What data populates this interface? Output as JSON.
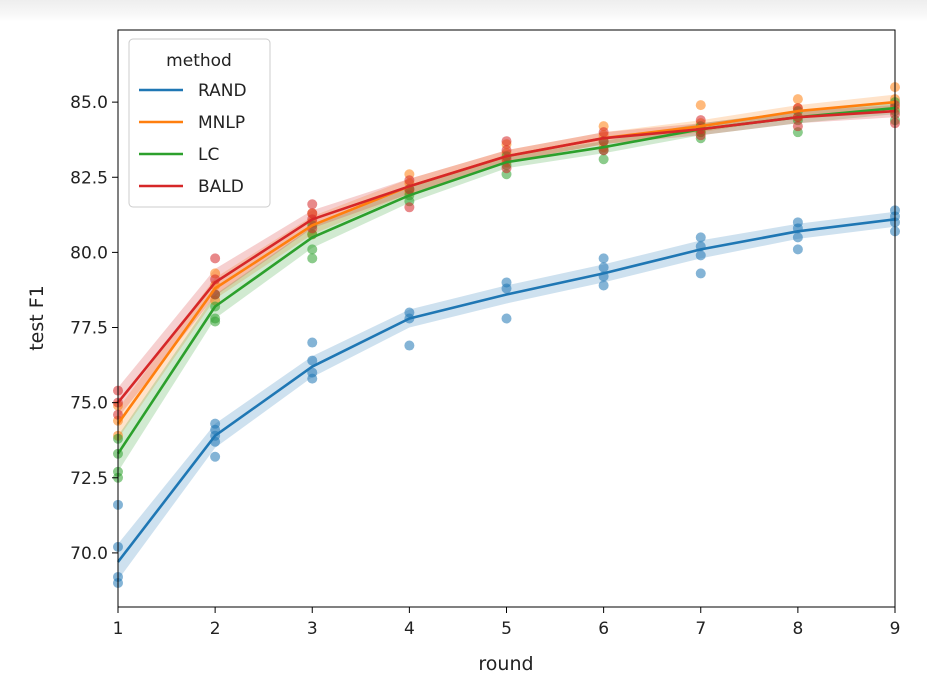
{
  "chart_data": {
    "type": "line",
    "xlabel": "round",
    "ylabel": "test F1",
    "xlim": [
      1,
      9
    ],
    "ylim": [
      68.2,
      87.4
    ],
    "x_ticks": [
      "1",
      "2",
      "3",
      "4",
      "5",
      "6",
      "7",
      "8",
      "9"
    ],
    "y_ticks": [
      "70.0",
      "72.5",
      "75.0",
      "77.5",
      "80.0",
      "82.5",
      "85.0"
    ],
    "grid": false,
    "legend": {
      "title": "method",
      "placement": "top-left"
    },
    "x": [
      1,
      2,
      3,
      4,
      5,
      6,
      7,
      8,
      9
    ],
    "series": [
      {
        "name": "RAND",
        "color": "#1f77b4",
        "values": [
          69.7,
          73.9,
          76.2,
          77.8,
          78.6,
          79.3,
          80.1,
          80.7,
          81.1
        ],
        "ci": [
          0.6,
          0.4,
          0.35,
          0.3,
          0.3,
          0.3,
          0.3,
          0.25,
          0.25
        ],
        "points": [
          [
            1,
            69.0
          ],
          [
            1,
            69.2
          ],
          [
            1,
            70.2
          ],
          [
            1,
            71.6
          ],
          [
            2,
            73.2
          ],
          [
            2,
            73.7
          ],
          [
            2,
            73.9
          ],
          [
            2,
            74.1
          ],
          [
            2,
            74.3
          ],
          [
            3,
            75.8
          ],
          [
            3,
            76.0
          ],
          [
            3,
            76.4
          ],
          [
            3,
            77.0
          ],
          [
            4,
            76.9
          ],
          [
            4,
            77.8
          ],
          [
            4,
            78.0
          ],
          [
            5,
            77.8
          ],
          [
            5,
            78.8
          ],
          [
            5,
            79.0
          ],
          [
            6,
            78.9
          ],
          [
            6,
            79.2
          ],
          [
            6,
            79.5
          ],
          [
            6,
            79.8
          ],
          [
            7,
            79.3
          ],
          [
            7,
            79.9
          ],
          [
            7,
            80.2
          ],
          [
            7,
            80.5
          ],
          [
            8,
            80.1
          ],
          [
            8,
            80.5
          ],
          [
            8,
            80.8
          ],
          [
            8,
            81.0
          ],
          [
            9,
            80.7
          ],
          [
            9,
            81.0
          ],
          [
            9,
            81.2
          ],
          [
            9,
            81.4
          ]
        ]
      },
      {
        "name": "MNLP",
        "color": "#ff7f0e",
        "values": [
          74.3,
          78.8,
          80.9,
          82.2,
          83.2,
          83.8,
          84.2,
          84.7,
          85.0
        ],
        "ci": [
          0.5,
          0.35,
          0.3,
          0.25,
          0.2,
          0.2,
          0.2,
          0.2,
          0.25
        ],
        "points": [
          [
            1,
            73.9
          ],
          [
            1,
            74.4
          ],
          [
            1,
            74.9
          ],
          [
            2,
            78.4
          ],
          [
            2,
            78.9
          ],
          [
            2,
            79.3
          ],
          [
            3,
            80.6
          ],
          [
            3,
            81.0
          ],
          [
            3,
            81.3
          ],
          [
            4,
            82.0
          ],
          [
            4,
            82.3
          ],
          [
            4,
            82.6
          ],
          [
            5,
            83.0
          ],
          [
            5,
            83.3
          ],
          [
            5,
            83.6
          ],
          [
            6,
            83.5
          ],
          [
            6,
            83.9
          ],
          [
            6,
            84.2
          ],
          [
            7,
            84.0
          ],
          [
            7,
            84.3
          ],
          [
            7,
            84.9
          ],
          [
            8,
            84.5
          ],
          [
            8,
            84.8
          ],
          [
            8,
            85.1
          ],
          [
            9,
            84.8
          ],
          [
            9,
            85.1
          ],
          [
            9,
            85.5
          ]
        ]
      },
      {
        "name": "LC",
        "color": "#2ca02c",
        "values": [
          73.3,
          78.2,
          80.5,
          81.9,
          83.0,
          83.5,
          84.1,
          84.5,
          84.8
        ],
        "ci": [
          0.6,
          0.4,
          0.35,
          0.25,
          0.2,
          0.2,
          0.2,
          0.2,
          0.2
        ],
        "points": [
          [
            1,
            72.5
          ],
          [
            1,
            72.7
          ],
          [
            1,
            73.3
          ],
          [
            1,
            73.8
          ],
          [
            2,
            77.7
          ],
          [
            2,
            77.8
          ],
          [
            2,
            78.2
          ],
          [
            2,
            78.6
          ],
          [
            3,
            79.8
          ],
          [
            3,
            80.1
          ],
          [
            3,
            80.6
          ],
          [
            3,
            80.9
          ],
          [
            4,
            81.7
          ],
          [
            4,
            81.9
          ],
          [
            4,
            82.1
          ],
          [
            5,
            82.6
          ],
          [
            5,
            82.9
          ],
          [
            5,
            83.2
          ],
          [
            6,
            83.1
          ],
          [
            6,
            83.4
          ],
          [
            6,
            83.7
          ],
          [
            7,
            83.8
          ],
          [
            7,
            84.0
          ],
          [
            7,
            84.2
          ],
          [
            8,
            84.0
          ],
          [
            8,
            84.4
          ],
          [
            8,
            84.7
          ],
          [
            9,
            84.4
          ],
          [
            9,
            84.7
          ],
          [
            9,
            85.0
          ]
        ]
      },
      {
        "name": "BALD",
        "color": "#d62728",
        "values": [
          75.0,
          79.0,
          81.1,
          82.2,
          83.2,
          83.8,
          84.1,
          84.5,
          84.7
        ],
        "ci": [
          0.5,
          0.45,
          0.3,
          0.25,
          0.2,
          0.2,
          0.2,
          0.2,
          0.2
        ],
        "points": [
          [
            1,
            74.6
          ],
          [
            1,
            75.0
          ],
          [
            1,
            75.4
          ],
          [
            2,
            78.6
          ],
          [
            2,
            79.1
          ],
          [
            2,
            79.8
          ],
          [
            3,
            80.8
          ],
          [
            3,
            81.1
          ],
          [
            3,
            81.3
          ],
          [
            3,
            81.6
          ],
          [
            4,
            81.5
          ],
          [
            4,
            82.1
          ],
          [
            4,
            82.4
          ],
          [
            5,
            82.8
          ],
          [
            5,
            83.1
          ],
          [
            5,
            83.4
          ],
          [
            5,
            83.7
          ],
          [
            6,
            83.4
          ],
          [
            6,
            83.7
          ],
          [
            6,
            84.0
          ],
          [
            7,
            83.9
          ],
          [
            7,
            84.1
          ],
          [
            7,
            84.4
          ],
          [
            8,
            84.2
          ],
          [
            8,
            84.5
          ],
          [
            8,
            84.8
          ],
          [
            9,
            84.3
          ],
          [
            9,
            84.6
          ],
          [
            9,
            84.9
          ]
        ]
      }
    ]
  }
}
